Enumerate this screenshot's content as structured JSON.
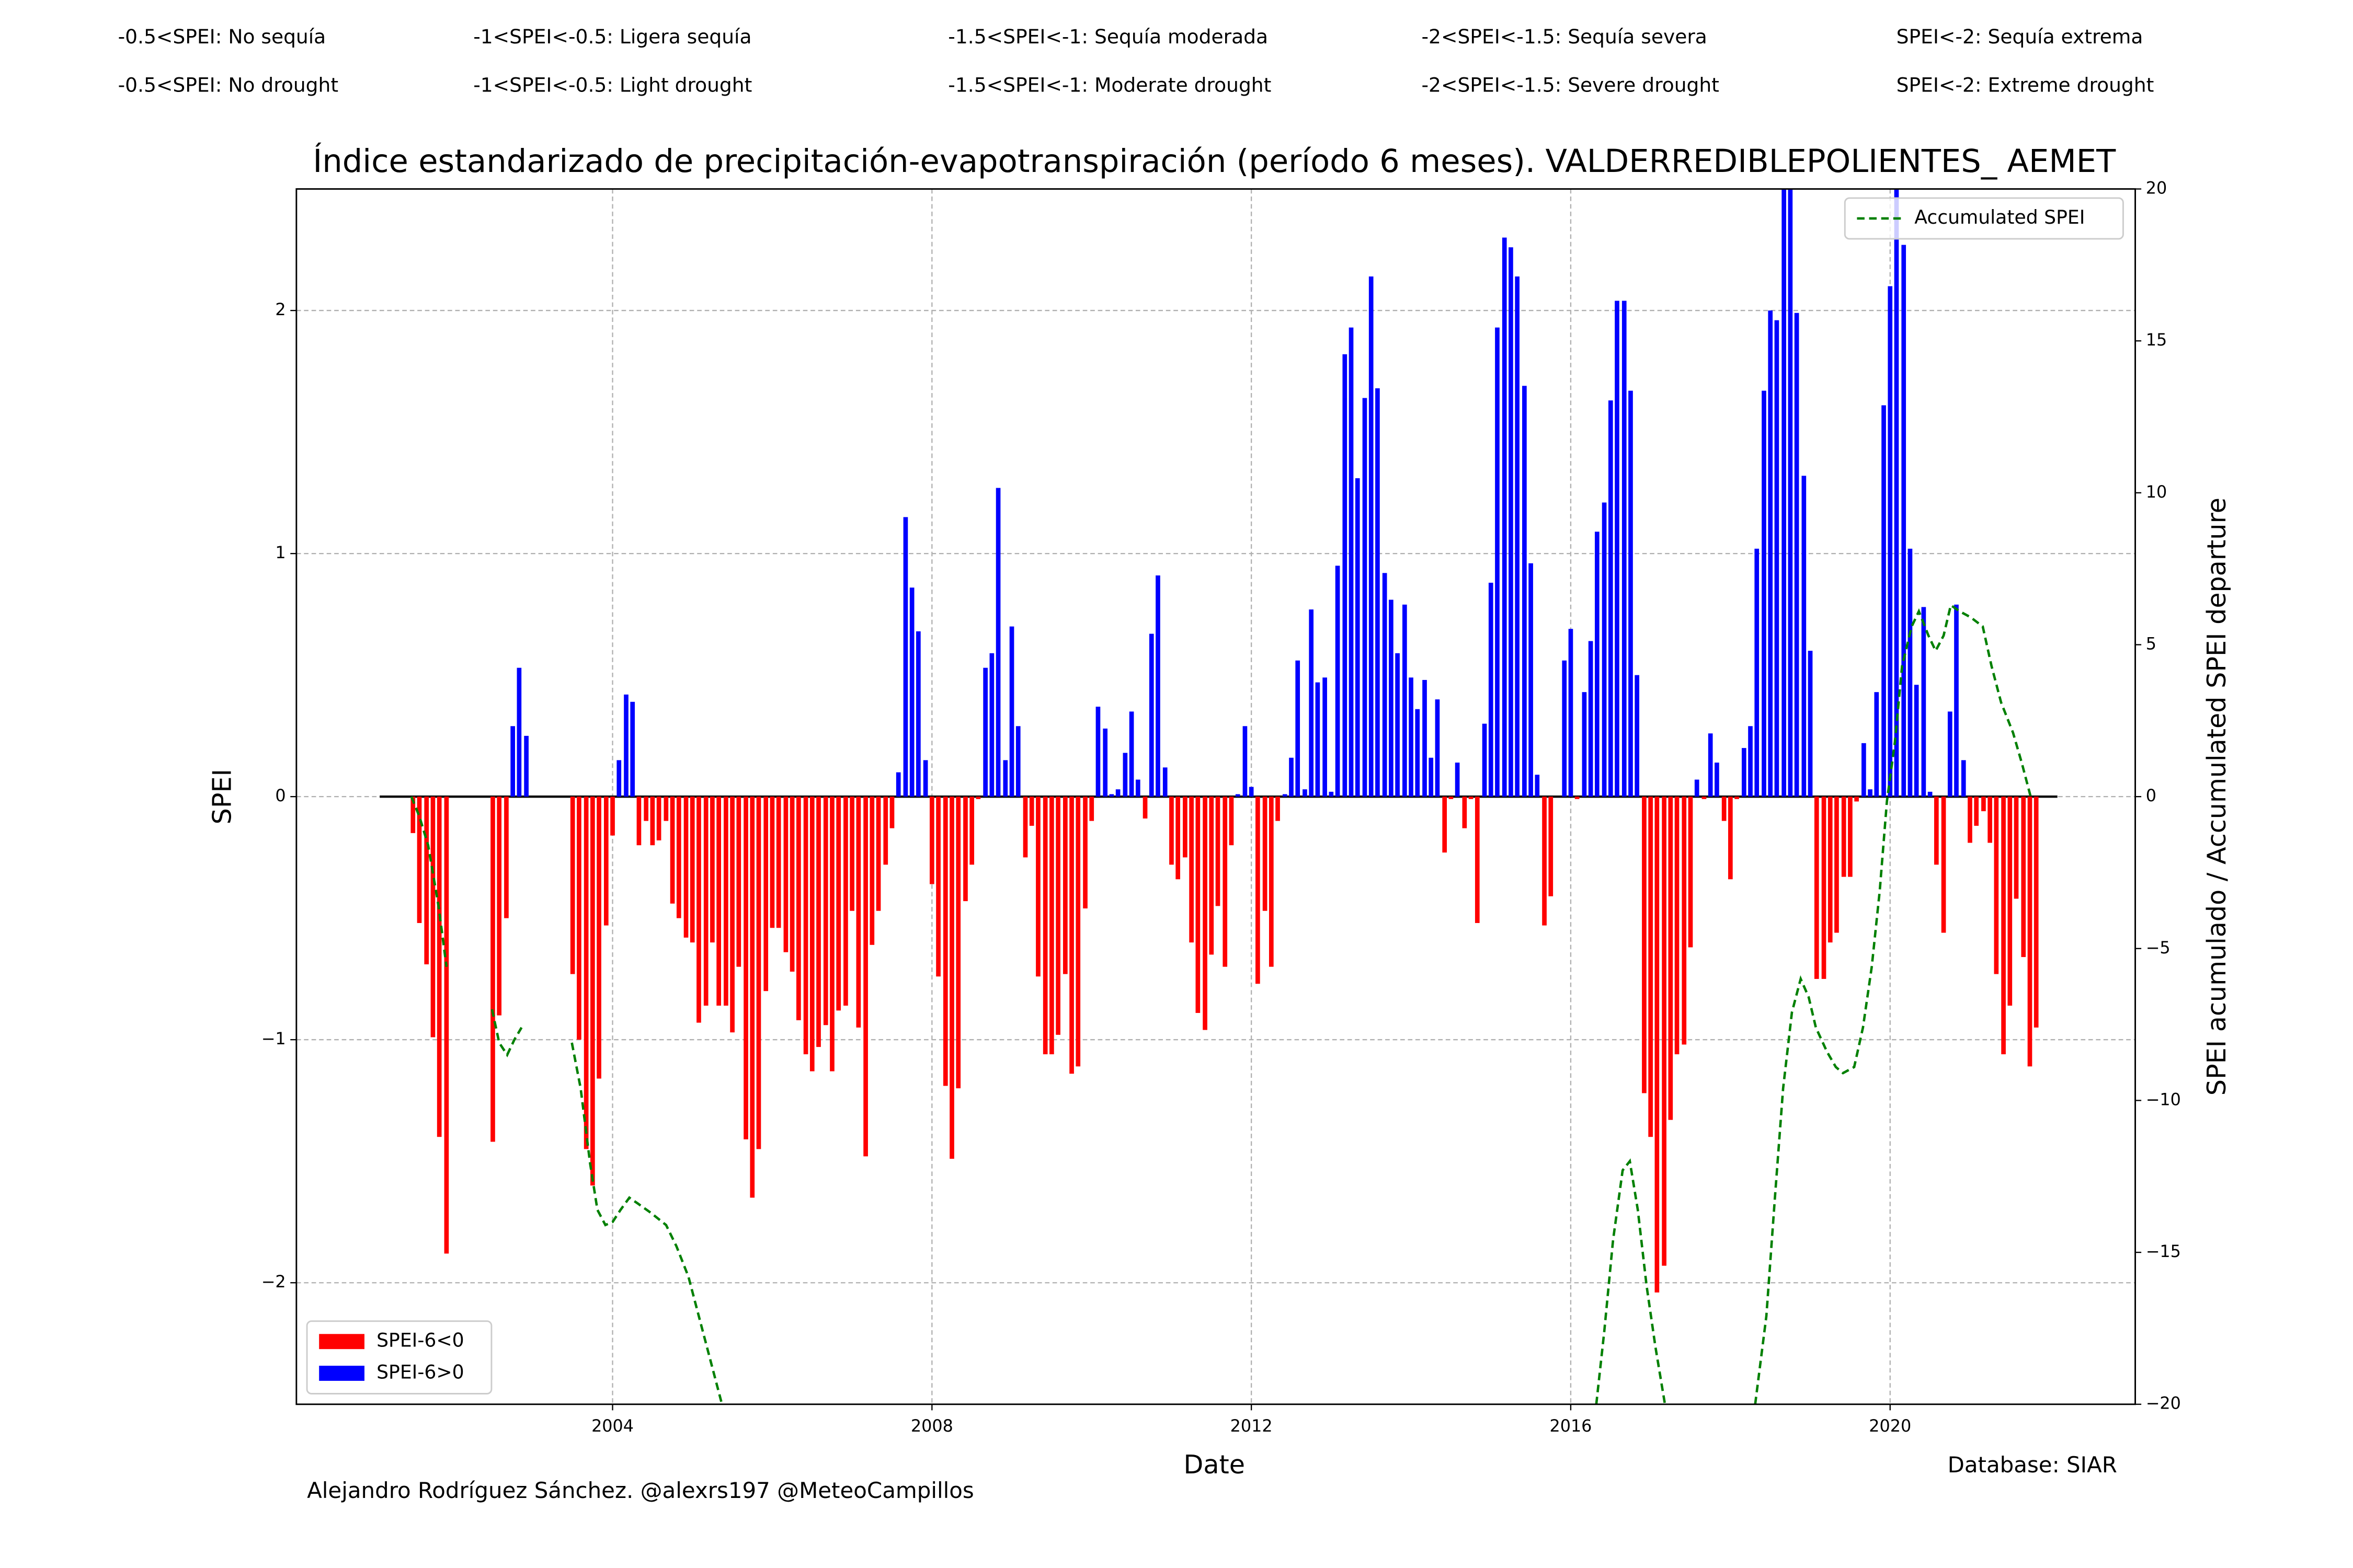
{
  "chart_data": {
    "type": "bar",
    "title": "Índice estandarizado de precipitación-evapotranspiración (período 6 meses). VALDERREDIBLEPOLIENTES_ AEMET",
    "notes": [
      "-0.5<SPEI: No sequía",
      "-1<SPEI<-0.5: Ligera sequía",
      "-1.5<SPEI<-1: Sequía moderada",
      "-2<SPEI<-1.5: Sequía severa",
      "SPEI<-2: Sequía extrema",
      "-0.5<SPEI: No drought",
      "-1<SPEI<-0.5: Light drought",
      "-1.5<SPEI<-1: Moderate drought",
      "-2<SPEI<-1.5: Severe drought",
      "SPEI<-2: Extreme drought"
    ],
    "xlabel": "Date",
    "ylabel": "SPEI",
    "y2label": "SPEI acumulado / Accumulated SPEI departure",
    "author": "Alejandro Rodríguez Sánchez. @alexrs197 @MeteoCampillos",
    "source": "Database: SIAR",
    "grid": true,
    "xlim": [
      2000.04,
      2023.07
    ],
    "xticks": [
      2004,
      2008,
      2012,
      2016,
      2020
    ],
    "ylim": [
      -2.5,
      2.5
    ],
    "yticks": [
      {
        "value": -2,
        "label": "−2"
      },
      {
        "value": -1,
        "label": "−1"
      },
      0,
      1,
      2
    ],
    "y2lim": [
      -20,
      20
    ],
    "y2ticks": [
      {
        "value": -20,
        "label": "−20"
      },
      {
        "value": -15,
        "label": "−15"
      },
      {
        "value": -10,
        "label": "−10"
      },
      {
        "value": -5,
        "label": "−5"
      },
      0,
      5,
      10,
      15,
      20
    ],
    "x": [
      2001.5,
      2001.58,
      2001.67,
      2001.75,
      2001.83,
      2001.92,
      2002.5,
      2002.58,
      2002.67,
      2002.75,
      2002.83,
      2002.92,
      2003.5,
      2003.58,
      2003.67,
      2003.75,
      2003.83,
      2003.92,
      2004.0,
      2004.08,
      2004.17,
      2004.25,
      2004.33,
      2004.42,
      2004.5,
      2004.58,
      2004.67,
      2004.75,
      2004.83,
      2004.92,
      2005.0,
      2005.08,
      2005.17,
      2005.25,
      2005.33,
      2005.42,
      2005.5,
      2005.58,
      2005.67,
      2005.75,
      2005.83,
      2005.92,
      2006.0,
      2006.08,
      2006.17,
      2006.25,
      2006.33,
      2006.42,
      2006.5,
      2006.58,
      2006.67,
      2006.75,
      2006.83,
      2006.92,
      2007.0,
      2007.08,
      2007.17,
      2007.25,
      2007.33,
      2007.42,
      2007.5,
      2007.58,
      2007.67,
      2007.75,
      2007.83,
      2007.92,
      2008.0,
      2008.08,
      2008.17,
      2008.25,
      2008.33,
      2008.42,
      2008.5,
      2008.58,
      2008.67,
      2008.75,
      2008.83,
      2008.92,
      2009.0,
      2009.08,
      2009.17,
      2009.25,
      2009.33,
      2009.42,
      2009.5,
      2009.58,
      2009.67,
      2009.75,
      2009.83,
      2009.92,
      2010.0,
      2010.08,
      2010.17,
      2010.25,
      2010.33,
      2010.42,
      2010.5,
      2010.58,
      2010.67,
      2010.75,
      2010.83,
      2010.92,
      2011.0,
      2011.08,
      2011.17,
      2011.25,
      2011.33,
      2011.42,
      2011.5,
      2011.58,
      2011.67,
      2011.75,
      2011.83,
      2011.92,
      2012.0,
      2012.08,
      2012.17,
      2012.25,
      2012.33,
      2012.42,
      2012.5,
      2012.58,
      2012.67,
      2012.75,
      2012.83,
      2012.92,
      2013.0,
      2013.08,
      2013.17,
      2013.25,
      2013.33,
      2013.42,
      2013.5,
      2013.58,
      2013.67,
      2013.75,
      2013.83,
      2013.92,
      2014.0,
      2014.08,
      2014.17,
      2014.25,
      2014.33,
      2014.42,
      2014.5,
      2014.58,
      2014.67,
      2014.75,
      2014.83,
      2014.92,
      2015.0,
      2015.08,
      2015.17,
      2015.25,
      2015.33,
      2015.42,
      2015.5,
      2015.58,
      2015.67,
      2015.75,
      2015.83,
      2015.92,
      2016.0,
      2016.08,
      2016.17,
      2016.25,
      2016.33,
      2016.42,
      2016.5,
      2016.58,
      2016.67,
      2016.75,
      2016.83,
      2016.92,
      2017.0,
      2017.08,
      2017.17,
      2017.25,
      2017.33,
      2017.42,
      2017.5,
      2017.58,
      2017.67,
      2017.75,
      2017.83,
      2017.92,
      2018.0,
      2018.08,
      2018.17,
      2018.25,
      2018.33,
      2018.42,
      2018.5,
      2018.58,
      2018.67,
      2018.75,
      2018.83,
      2018.92,
      2019.0,
      2019.08,
      2019.17,
      2019.25,
      2019.33,
      2019.42,
      2019.5,
      2019.58,
      2019.67,
      2019.75,
      2019.83,
      2019.92,
      2020.0,
      2020.08,
      2020.17,
      2020.25,
      2020.33,
      2020.42,
      2020.5,
      2020.58,
      2020.67,
      2020.75,
      2020.83,
      2020.92,
      2021.0,
      2021.08,
      2021.17,
      2021.25,
      2021.33,
      2021.42,
      2021.5,
      2021.58,
      2021.67,
      2021.75,
      2021.83
    ],
    "series": [
      {
        "name": "SPEI-6<0",
        "color": "#ff0000",
        "legend": "lower left",
        "values": [
          -0.15,
          -0.52,
          -0.69,
          -0.99,
          -1.4,
          -1.88,
          -1.42,
          -0.9,
          -0.5,
          null,
          null,
          null,
          -0.73,
          -1.0,
          -1.45,
          -1.6,
          -1.16,
          -0.53,
          -0.16,
          null,
          null,
          null,
          -0.2,
          -0.1,
          -0.2,
          -0.18,
          -0.1,
          -0.44,
          -0.5,
          -0.58,
          -0.6,
          -0.93,
          -0.86,
          -0.6,
          -0.86,
          -0.86,
          -0.97,
          -0.7,
          -1.41,
          -1.65,
          -1.45,
          -0.8,
          -0.54,
          -0.54,
          -0.64,
          -0.72,
          -0.92,
          -1.06,
          -1.13,
          -1.03,
          -0.94,
          -1.13,
          -0.88,
          -0.86,
          -0.47,
          -0.95,
          -1.48,
          -0.61,
          -0.47,
          -0.28,
          -0.13,
          null,
          null,
          null,
          null,
          null,
          -0.36,
          -0.74,
          -1.19,
          -1.49,
          -1.2,
          -0.43,
          -0.28,
          -0.01,
          null,
          null,
          null,
          null,
          null,
          null,
          -0.25,
          -0.12,
          -0.74,
          -1.06,
          -1.06,
          -0.98,
          -0.73,
          -1.14,
          -1.11,
          -0.46,
          -0.1,
          null,
          null,
          null,
          null,
          null,
          null,
          null,
          -0.09,
          null,
          null,
          null,
          -0.28,
          -0.34,
          -0.25,
          -0.6,
          -0.89,
          -0.96,
          -0.65,
          -0.45,
          -0.7,
          -0.2,
          null,
          null,
          null,
          -0.77,
          -0.47,
          -0.7,
          -0.1,
          null,
          null,
          null,
          null,
          null,
          null,
          null,
          null,
          null,
          null,
          null,
          null,
          null,
          null,
          null,
          null,
          null,
          null,
          null,
          null,
          null,
          null,
          null,
          null,
          -0.23,
          -0.01,
          null,
          -0.13,
          -0.01,
          -0.52,
          null,
          null,
          null,
          null,
          null,
          null,
          null,
          null,
          null,
          -0.53,
          -0.41,
          null,
          null,
          null,
          -0.01,
          null,
          null,
          null,
          null,
          null,
          null,
          null,
          null,
          null,
          -1.22,
          -1.4,
          -2.04,
          -1.93,
          -1.33,
          -1.06,
          -1.02,
          -0.62,
          null,
          -0.01,
          null,
          null,
          -0.1,
          -0.34,
          -0.01,
          null,
          null,
          null,
          null,
          null,
          null,
          null,
          null,
          null,
          null,
          null,
          -0.75,
          -0.75,
          -0.6,
          -0.56,
          -0.33,
          -0.33,
          -0.02,
          null,
          null,
          null,
          null,
          null,
          null,
          null,
          null,
          null,
          null,
          null,
          -0.28,
          -0.56,
          null,
          null,
          null,
          -0.19,
          -0.12,
          -0.06,
          -0.19,
          -0.73,
          -1.06,
          -0.86,
          -0.42,
          -0.66,
          -1.11,
          -0.95
        ]
      },
      {
        "name": "SPEI-6>0",
        "color": "#0000ff",
        "legend": "lower left",
        "values": [
          null,
          null,
          null,
          null,
          null,
          null,
          null,
          null,
          null,
          0.29,
          0.53,
          0.25,
          null,
          null,
          null,
          null,
          null,
          null,
          null,
          0.15,
          0.42,
          0.39,
          null,
          null,
          null,
          null,
          null,
          null,
          null,
          null,
          null,
          null,
          null,
          null,
          null,
          null,
          null,
          null,
          null,
          null,
          null,
          null,
          null,
          null,
          null,
          null,
          null,
          null,
          null,
          null,
          null,
          null,
          null,
          null,
          null,
          null,
          null,
          null,
          null,
          null,
          null,
          0.1,
          1.15,
          0.86,
          0.68,
          0.15,
          null,
          null,
          null,
          null,
          null,
          null,
          null,
          null,
          0.53,
          0.59,
          1.27,
          0.15,
          0.7,
          0.29,
          null,
          null,
          null,
          null,
          null,
          null,
          null,
          null,
          null,
          null,
          null,
          0.37,
          0.28,
          0.01,
          0.03,
          0.18,
          0.35,
          0.07,
          null,
          0.67,
          0.91,
          0.12,
          null,
          null,
          null,
          null,
          null,
          null,
          null,
          null,
          null,
          null,
          0.01,
          0.29,
          0.04,
          null,
          null,
          null,
          null,
          0.01,
          0.16,
          0.56,
          0.03,
          0.77,
          0.47,
          0.49,
          0.02,
          0.95,
          1.82,
          1.93,
          1.31,
          1.64,
          2.14,
          1.68,
          0.92,
          0.81,
          0.59,
          0.79,
          0.49,
          0.36,
          0.48,
          0.16,
          0.4,
          null,
          null,
          0.14,
          null,
          null,
          null,
          0.3,
          0.88,
          1.93,
          2.3,
          2.26,
          2.14,
          1.69,
          0.96,
          0.09,
          null,
          null,
          0.0,
          0.56,
          0.69,
          null,
          0.43,
          0.64,
          1.09,
          1.21,
          1.63,
          2.04,
          2.04,
          1.67,
          0.5,
          null,
          null,
          null,
          null,
          null,
          null,
          null,
          null,
          0.07,
          null,
          0.26,
          0.14,
          null,
          null,
          null,
          0.2,
          0.29,
          1.02,
          1.67,
          2.0,
          1.96,
          2.5,
          2.5,
          1.99,
          1.32,
          0.6,
          null,
          null,
          null,
          null,
          null,
          null,
          null,
          0.22,
          0.03,
          0.43,
          1.61,
          2.1,
          2.5,
          2.27,
          1.02,
          0.46,
          0.78,
          0.02,
          null,
          null,
          0.35,
          0.79,
          0.15,
          null,
          null,
          null,
          null,
          null,
          null,
          null,
          null,
          null,
          null,
          null
        ]
      },
      {
        "name": "Accumulated SPEI",
        "type": "line",
        "axis": "y2",
        "color": "#008000",
        "linestyle": "dashed",
        "legend": "upper right",
        "x": [
          2001.48,
          2001.58,
          2001.69,
          2001.82,
          2001.92,
          2002.2,
          2002.49,
          2002.58,
          2002.68,
          2002.77,
          2002.86,
          2003.2,
          2003.49,
          2003.6,
          2003.72,
          2003.81,
          2003.91,
          2004.0,
          2004.1,
          2004.21,
          2004.32,
          2004.48,
          2004.67,
          2004.8,
          2004.95,
          2005.08,
          2005.23,
          2005.37,
          2010.0,
          2016.32,
          2016.42,
          2016.53,
          2016.65,
          2016.74,
          2016.84,
          2016.95,
          2017.06,
          2017.18,
          2017.8,
          2018.31,
          2018.45,
          2018.56,
          2018.66,
          2018.77,
          2018.88,
          2018.98,
          2019.07,
          2019.21,
          2019.32,
          2019.41,
          2019.55,
          2019.66,
          2019.77,
          2019.87,
          2019.96,
          2020.06,
          2020.15,
          2020.27,
          2020.36,
          2020.48,
          2020.57,
          2020.67,
          2020.76,
          2020.87,
          2021.01,
          2021.16,
          2021.27,
          2021.39,
          2021.54,
          2021.65,
          2021.76
        ],
        "values": [
          0,
          -0.65,
          -1.6,
          -3.6,
          -5.6,
          null,
          -7,
          -8.1,
          -8.5,
          -8,
          -7.6,
          null,
          -8.1,
          -9.6,
          -12.1,
          -13.6,
          -14.1,
          -14,
          -13.6,
          -13.2,
          -13.4,
          -13.7,
          -14.1,
          -14.8,
          -15.8,
          -17.1,
          -18.6,
          -20,
          null,
          -20,
          -17.6,
          -14.6,
          -12.3,
          -12,
          -13.6,
          -16.1,
          -18.1,
          -20,
          null,
          -20,
          -17.1,
          -13.1,
          -9.6,
          -7.1,
          -6,
          -6.6,
          -7.6,
          -8.4,
          -8.9,
          -9.1,
          -8.9,
          -7.6,
          -5.6,
          -3.1,
          -0.15,
          1.8,
          4.3,
          5.6,
          6.1,
          5.3,
          4.8,
          5.3,
          6.3,
          6.1,
          5.9,
          5.6,
          4.3,
          3.1,
          2.1,
          1.1,
          0
        ]
      }
    ]
  }
}
